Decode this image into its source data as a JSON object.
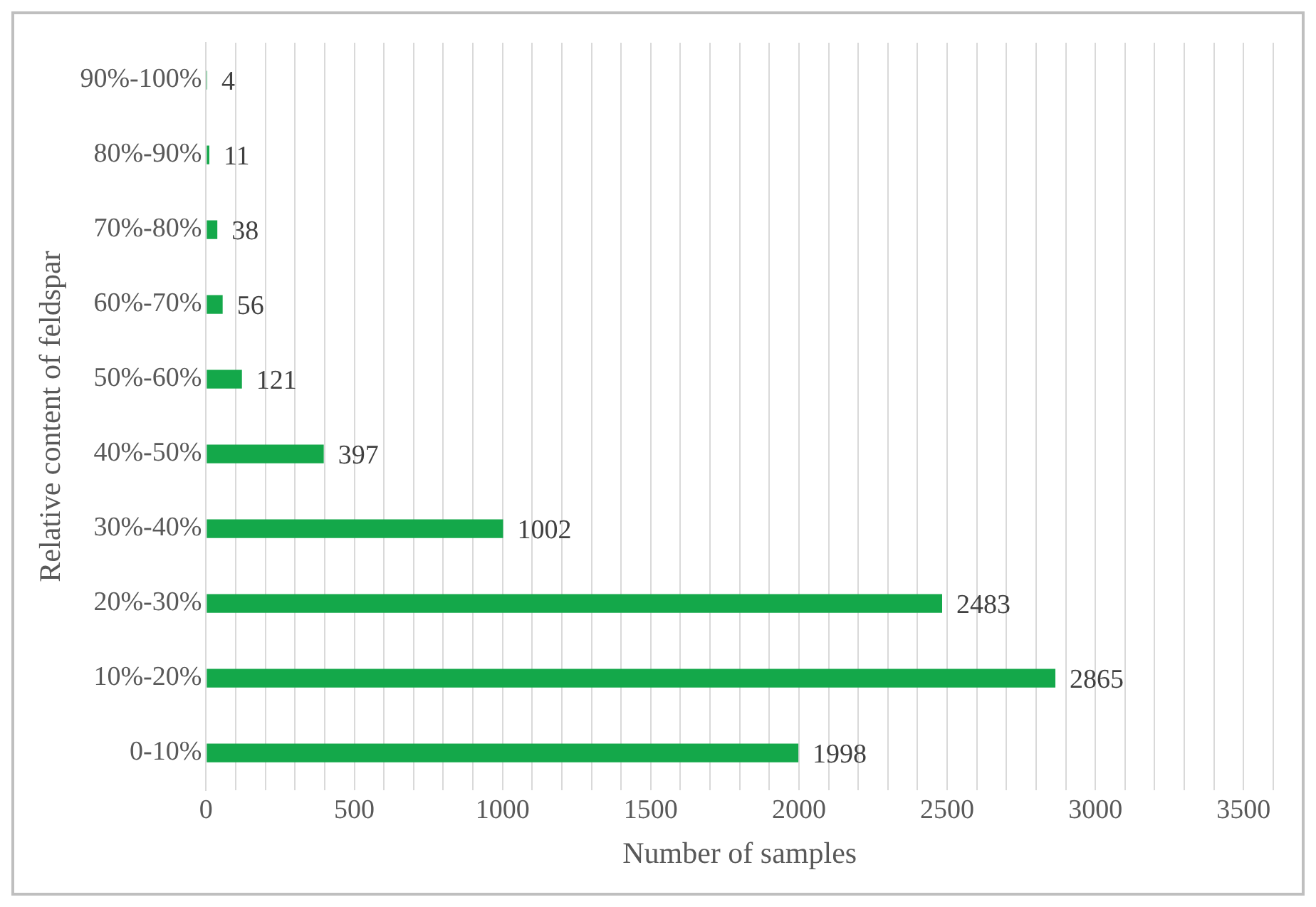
{
  "chart_data": {
    "type": "bar",
    "orientation": "horizontal",
    "xlabel": "Number of samples",
    "ylabel": "Relative content of feldspar",
    "categories": [
      "90%-100%",
      "80%-90%",
      "70%-80%",
      "60%-70%",
      "50%-60%",
      "40%-50%",
      "30%-40%",
      "20%-30%",
      "10%-20%",
      "0-10%"
    ],
    "values": [
      4,
      11,
      38,
      56,
      121,
      397,
      1002,
      2483,
      2865,
      1998
    ],
    "color": "#14a84a",
    "data_labels": true,
    "grid": "x",
    "legend": false,
    "xlim": [
      0,
      3600
    ],
    "xticks": [
      0,
      {
        "value": 100,
        "label": null
      },
      {
        "value": 200,
        "label": null
      },
      {
        "value": 300,
        "label": null
      },
      {
        "value": 400,
        "label": null
      },
      500,
      {
        "value": 600,
        "label": null
      },
      {
        "value": 700,
        "label": null
      },
      {
        "value": 800,
        "label": null
      },
      {
        "value": 900,
        "label": null
      },
      1000,
      {
        "value": 1100,
        "label": null
      },
      {
        "value": 1200,
        "label": null
      },
      {
        "value": 1300,
        "label": null
      },
      {
        "value": 1400,
        "label": null
      },
      1500,
      {
        "value": 1600,
        "label": null
      },
      {
        "value": 1700,
        "label": null
      },
      {
        "value": 1800,
        "label": null
      },
      {
        "value": 1900,
        "label": null
      },
      2000,
      {
        "value": 2100,
        "label": null
      },
      {
        "value": 2200,
        "label": null
      },
      {
        "value": 2300,
        "label": null
      },
      {
        "value": 2400,
        "label": null
      },
      2500,
      {
        "value": 2600,
        "label": null
      },
      {
        "value": 2700,
        "label": null
      },
      {
        "value": 2800,
        "label": null
      },
      {
        "value": 2900,
        "label": null
      },
      3000,
      {
        "value": 3100,
        "label": null
      },
      {
        "value": 3200,
        "label": null
      },
      {
        "value": 3300,
        "label": null
      },
      {
        "value": 3400,
        "label": null
      },
      3500,
      {
        "value": 3600,
        "label": null
      }
    ]
  }
}
